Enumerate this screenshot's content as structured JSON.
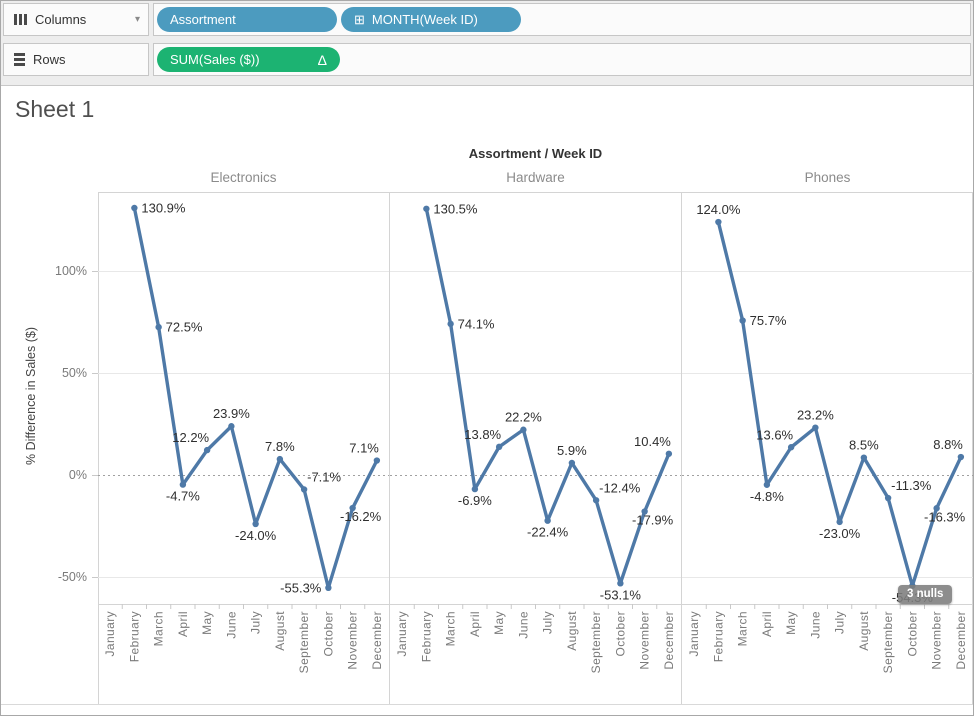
{
  "colors": {
    "pill_blue": "#4C9BBF",
    "pill_green": "#1CB372",
    "line": "#4E79A7"
  },
  "shelves": {
    "columns": {
      "label": "Columns",
      "pills": [
        {
          "text": "Assortment"
        },
        {
          "text": "MONTH(Week ID)",
          "icon_glyph": "⊞"
        }
      ]
    },
    "rows": {
      "label": "Rows",
      "pills": [
        {
          "text": "SUM(Sales ($))",
          "badge": "Δ"
        }
      ]
    }
  },
  "sheet": {
    "title": "Sheet 1"
  },
  "chart_data": {
    "type": "line",
    "title": "Assortment / Week ID",
    "ylabel": "% Difference in Sales ($)",
    "x_categories": [
      "January",
      "February",
      "March",
      "April",
      "May",
      "June",
      "July",
      "August",
      "September",
      "October",
      "November",
      "December"
    ],
    "y_ticks": [
      {
        "value": 100,
        "label": "100%"
      },
      {
        "value": 50,
        "label": "50%"
      },
      {
        "value": 0,
        "label": "0%"
      },
      {
        "value": -50,
        "label": "-50%"
      }
    ],
    "ylim": [
      -63,
      139
    ],
    "grid": true,
    "zero_line": "dotted",
    "panels": [
      {
        "name": "Electronics",
        "values": [
          null,
          130.9,
          72.5,
          -4.7,
          12.2,
          23.9,
          -24.0,
          7.8,
          -7.1,
          -55.3,
          -16.2,
          7.1
        ],
        "labels": [
          "",
          "130.9%",
          "72.5%",
          "-4.7%",
          "12.2%",
          "23.9%",
          "-24.0%",
          "7.8%",
          "-7.1%",
          "-55.3%",
          "-16.2%",
          "7.1%"
        ],
        "label_pos": [
          "",
          "right",
          "right",
          "below",
          "above-left",
          "above",
          "below",
          "above",
          "above-right",
          "left",
          "below-right",
          "above-left"
        ]
      },
      {
        "name": "Hardware",
        "values": [
          null,
          130.5,
          74.1,
          -6.9,
          13.8,
          22.2,
          -22.4,
          5.9,
          -12.4,
          -53.1,
          -17.9,
          10.4
        ],
        "labels": [
          "",
          "130.5%",
          "74.1%",
          "-6.9%",
          "13.8%",
          "22.2%",
          "-22.4%",
          "5.9%",
          "-12.4%",
          "-53.1%",
          "-17.9%",
          "10.4%"
        ],
        "label_pos": [
          "",
          "right",
          "right",
          "below",
          "above-left",
          "above",
          "below",
          "above",
          "above-right",
          "below",
          "below-right",
          "above-left"
        ]
      },
      {
        "name": "Phones",
        "values": [
          null,
          124.0,
          75.7,
          -4.8,
          13.6,
          23.2,
          -23.0,
          8.5,
          -11.3,
          -54.3,
          -16.3,
          8.8
        ],
        "labels": [
          "",
          "124.0%",
          "75.7%",
          "-4.8%",
          "13.6%",
          "23.2%",
          "-23.0%",
          "8.5%",
          "-11.3%",
          "-54.3%",
          "-16.3%",
          "8.8%"
        ],
        "label_pos": [
          "",
          "above",
          "right",
          "below",
          "above-left",
          "above",
          "below",
          "above",
          "above-right",
          "below",
          "below-right",
          "above-left"
        ]
      }
    ],
    "nulls_indicator": {
      "text": "3 nulls"
    }
  }
}
